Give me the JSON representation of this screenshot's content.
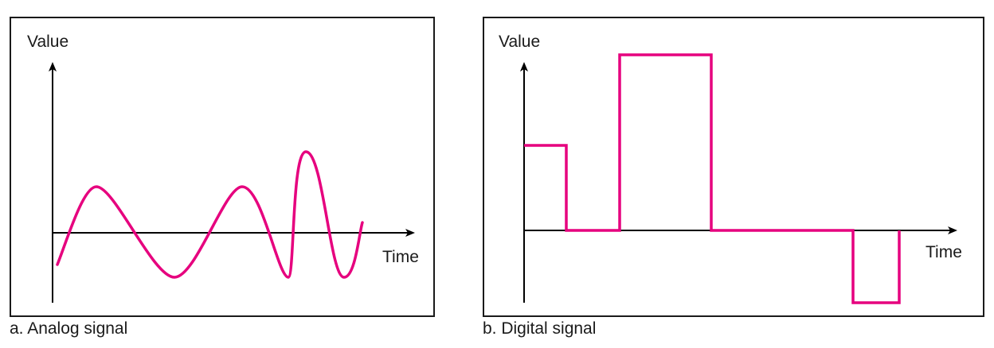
{
  "panels": [
    {
      "id": "analog",
      "caption": "a. Analog signal",
      "y_axis_label": "Value",
      "x_axis_label": "Time",
      "signal_color": "#e6007e",
      "axis_color": "#000000"
    },
    {
      "id": "digital",
      "caption": "b. Digital signal",
      "y_axis_label": "Value",
      "x_axis_label": "Time",
      "signal_color": "#e6007e",
      "axis_color": "#000000"
    }
  ]
}
